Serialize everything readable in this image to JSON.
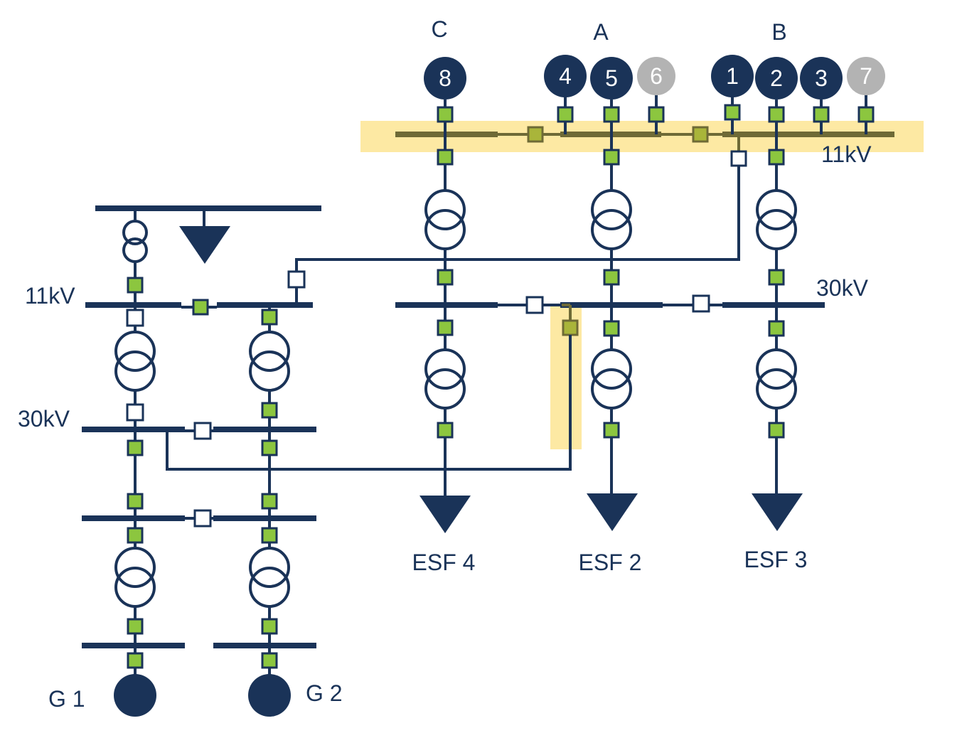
{
  "colors": {
    "primary": "#1a3358",
    "breaker_closed": "#8cc63f",
    "breaker_open": "#ffffff",
    "highlight": "#fde9a3",
    "highlight_line": "#6e6a36",
    "source_inactive": "#b3b3b3"
  },
  "group_labels": {
    "c": "C",
    "a": "A",
    "b": "B"
  },
  "voltage_labels": {
    "top_11kv": "11kV",
    "right_30kv": "30kV",
    "left_11kv": "11kV",
    "left_30kv": "30kV"
  },
  "sources": [
    {
      "id": "s8",
      "label": "8",
      "state": "active"
    },
    {
      "id": "s4",
      "label": "4",
      "state": "active"
    },
    {
      "id": "s5",
      "label": "5",
      "state": "active"
    },
    {
      "id": "s6",
      "label": "6",
      "state": "inactive"
    },
    {
      "id": "s1",
      "label": "1",
      "state": "active"
    },
    {
      "id": "s2",
      "label": "2",
      "state": "active"
    },
    {
      "id": "s3",
      "label": "3",
      "state": "active"
    },
    {
      "id": "s7",
      "label": "7",
      "state": "inactive"
    }
  ],
  "loads": {
    "esf4": "ESF 4",
    "esf2": "ESF 2",
    "esf3": "ESF 3"
  },
  "generators": {
    "g1": "G 1",
    "g2": "G 2"
  }
}
